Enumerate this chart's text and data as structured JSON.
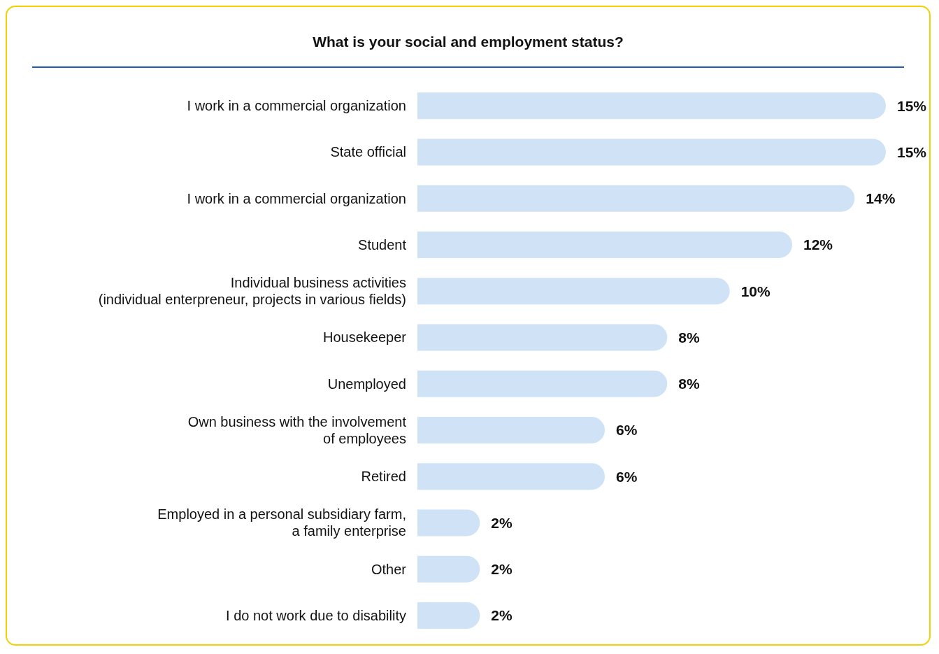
{
  "chart_data": {
    "type": "bar",
    "orientation": "horizontal",
    "title": "What is your social and employment status?",
    "categories": [
      "I work in a commercial organization",
      "State official",
      "I work in a commercial organization",
      "Student",
      "Individual business activities\n(individual enterpreneur, projects in various fields)",
      "Housekeeper",
      "Unemployed",
      "Own business with the involvement\nof employees",
      "Retired",
      "Employed in a personal subsidiary farm,\na family enterprise",
      "Other",
      "I do not work due to disability"
    ],
    "values": [
      15,
      15,
      14,
      12,
      10,
      8,
      8,
      6,
      6,
      2,
      2,
      2
    ],
    "value_labels": [
      "15%",
      "15%",
      "14%",
      "12%",
      "10%",
      "8%",
      "8%",
      "6%",
      "6%",
      "2%",
      "2%",
      "2%"
    ],
    "color": "#cfe2f6"
  }
}
